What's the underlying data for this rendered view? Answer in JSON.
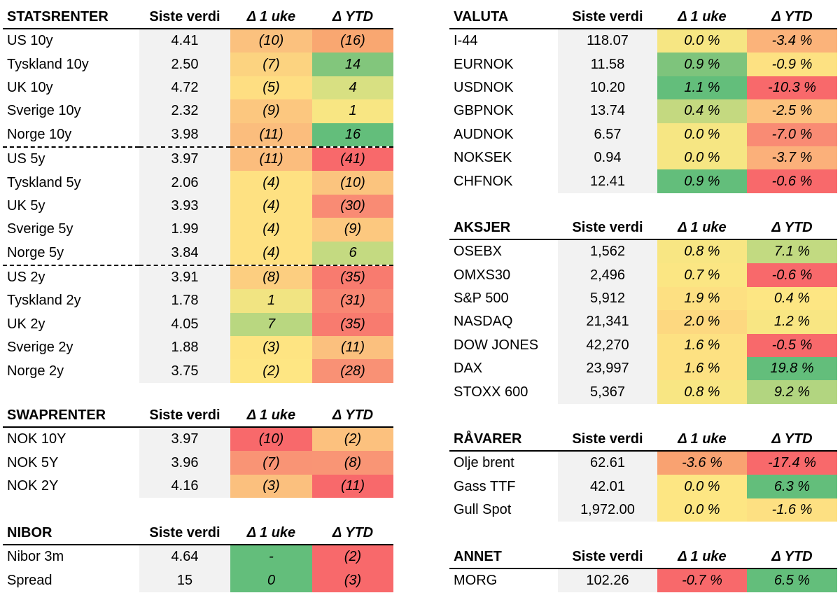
{
  "tables": {
    "statsrenter": {
      "headers": [
        "STATSRENTER",
        "Siste verdi",
        "Δ 1 uke",
        "Δ YTD"
      ],
      "rows": [
        {
          "name": "US 10y",
          "value": "4.41",
          "w": "(10)",
          "ytd": "(16)",
          "wc": "#fbc17e",
          "yc": "#f9a771"
        },
        {
          "name": "Tyskland 10y",
          "value": "2.50",
          "w": "(7)",
          "ytd": "14",
          "wc": "#fcd380",
          "yc": "#82c67c"
        },
        {
          "name": "UK 10y",
          "value": "4.72",
          "w": "(5)",
          "ytd": "4",
          "wc": "#fede82",
          "yc": "#d8e082"
        },
        {
          "name": "Sverige 10y",
          "value": "2.32",
          "w": "(9)",
          "ytd": "1",
          "wc": "#fcc77f",
          "yc": "#f8e683"
        },
        {
          "name": "Norge 10y",
          "value": "3.98",
          "w": "(11)",
          "ytd": "16",
          "wc": "#fbbd7d",
          "yc": "#63be7b",
          "sep": true
        },
        {
          "name": "US 5y",
          "value": "3.97",
          "w": "(11)",
          "ytd": "(41)",
          "wc": "#fbbd7d",
          "yc": "#f8696b"
        },
        {
          "name": "Tyskland 5y",
          "value": "2.06",
          "w": "(4)",
          "ytd": "(10)",
          "wc": "#fee182",
          "yc": "#fbc47e"
        },
        {
          "name": "UK 5y",
          "value": "3.93",
          "w": "(4)",
          "ytd": "(30)",
          "wc": "#fee182",
          "yc": "#f98b74"
        },
        {
          "name": "Sverige 5y",
          "value": "1.99",
          "w": "(4)",
          "ytd": "(9)",
          "wc": "#fee182",
          "yc": "#fcc87f"
        },
        {
          "name": "Norge 5y",
          "value": "3.84",
          "w": "(4)",
          "ytd": "6",
          "wc": "#fee182",
          "yc": "#c4da81",
          "sep": true
        },
        {
          "name": "US 2y",
          "value": "3.91",
          "w": "(8)",
          "ytd": "(35)",
          "wc": "#fcce80",
          "yc": "#f87b6f"
        },
        {
          "name": "Tyskland 2y",
          "value": "1.78",
          "w": "1",
          "ytd": "(31)",
          "wc": "#f1e482",
          "yc": "#f98773"
        },
        {
          "name": "UK 2y",
          "value": "4.05",
          "w": "7",
          "ytd": "(35)",
          "wc": "#b9d780",
          "yc": "#f87b6f"
        },
        {
          "name": "Sverige 2y",
          "value": "1.88",
          "w": "(3)",
          "ytd": "(11)",
          "wc": "#fee482",
          "yc": "#fbc07e"
        },
        {
          "name": "Norge 2y",
          "value": "3.75",
          "w": "(2)",
          "ytd": "(28)",
          "wc": "#fee683",
          "yc": "#f99175"
        }
      ]
    },
    "swaprenter": {
      "headers": [
        "SWAPRENTER",
        "Siste verdi",
        "Δ 1 uke",
        "Δ YTD"
      ],
      "rows": [
        {
          "name": "NOK 10Y",
          "value": "3.97",
          "w": "(10)",
          "ytd": "(2)",
          "wc": "#f8696b",
          "yc": "#fcc17e"
        },
        {
          "name": "NOK 5Y",
          "value": "3.96",
          "w": "(7)",
          "ytd": "(8)",
          "wc": "#f99475",
          "yc": "#f99575"
        },
        {
          "name": "NOK 2Y",
          "value": "4.16",
          "w": "(3)",
          "ytd": "(11)",
          "wc": "#fbc07e",
          "yc": "#f8696b"
        }
      ]
    },
    "nibor": {
      "headers": [
        "NIBOR",
        "Siste verdi",
        "Δ 1 uke",
        "Δ YTD"
      ],
      "rows": [
        {
          "name": "Nibor 3m",
          "value": "4.64",
          "w": "-",
          "ytd": "(2)",
          "wc": "#63be7b",
          "yc": "#f8696b"
        },
        {
          "name": "Spread",
          "value": "15",
          "w": "0",
          "ytd": "(3)",
          "wc": "#63be7b",
          "yc": "#f8696b"
        }
      ]
    },
    "valuta": {
      "headers": [
        "VALUTA",
        "Siste verdi",
        "Δ 1 uke",
        "Δ YTD"
      ],
      "rows": [
        {
          "name": "I-44",
          "value": "118.07",
          "w": "0.0 %",
          "ytd": "-3.4 %",
          "wc": "#f6e683",
          "yc": "#fbb37a"
        },
        {
          "name": "EURNOK",
          "value": "11.58",
          "w": "0.9 %",
          "ytd": "-0.9 %",
          "wc": "#7ec47c",
          "yc": "#fde182"
        },
        {
          "name": "USDNOK",
          "value": "10.20",
          "w": "1.1 %",
          "ytd": "-10.3 %",
          "wc": "#63be7b",
          "yc": "#f8696b"
        },
        {
          "name": "GBPNOK",
          "value": "13.74",
          "w": "0.4 %",
          "ytd": "-2.5 %",
          "wc": "#c4d980",
          "yc": "#fcc27e"
        },
        {
          "name": "AUDNOK",
          "value": "6.57",
          "w": "0.0 %",
          "ytd": "-7.0 %",
          "wc": "#f6e683",
          "yc": "#f98b74"
        },
        {
          "name": "NOKSEK",
          "value": "0.94",
          "w": "0.0 %",
          "ytd": "-3.7 %",
          "wc": "#f6e683",
          "yc": "#fbb07a"
        },
        {
          "name": "CHFNOK",
          "value": "12.41",
          "w": "0.9 %",
          "ytd": "-0.6 %",
          "wc": "#63be7b",
          "yc": "#f8696b"
        }
      ]
    },
    "aksjer": {
      "headers": [
        "AKSJER",
        "Siste verdi",
        "Δ 1 uke",
        "Δ YTD"
      ],
      "rows": [
        {
          "name": "OSEBX",
          "value": "1,562",
          "w": "0.8 %",
          "ytd": "7.1 %",
          "wc": "#f8e683",
          "yc": "#c2da81"
        },
        {
          "name": "OMXS30",
          "value": "2,496",
          "w": "0.7 %",
          "ytd": "-0.6 %",
          "wc": "#fbe683",
          "yc": "#f8696b"
        },
        {
          "name": "S&P 500",
          "value": "5,912",
          "w": "1.9 %",
          "ytd": "0.4 %",
          "wc": "#fde082",
          "yc": "#fde683"
        },
        {
          "name": "NASDAQ",
          "value": "21,341",
          "w": "2.0 %",
          "ytd": "1.2 %",
          "wc": "#fdd880",
          "yc": "#f8e683"
        },
        {
          "name": "DOW JONES",
          "value": "42,270",
          "w": "1.6 %",
          "ytd": "-0.5 %",
          "wc": "#fde182",
          "yc": "#f8696b"
        },
        {
          "name": "DAX",
          "value": "23,997",
          "w": "1.6 %",
          "ytd": "19.8 %",
          "wc": "#fde182",
          "yc": "#63be7b"
        },
        {
          "name": "STOXX 600",
          "value": "5,367",
          "w": "0.8 %",
          "ytd": "9.2 %",
          "wc": "#f8e683",
          "yc": "#b2d580"
        }
      ]
    },
    "ravarer": {
      "headers": [
        "RÅVARER",
        "Siste verdi",
        "Δ 1 uke",
        "Δ YTD"
      ],
      "rows": [
        {
          "name": "Olje brent",
          "value": "62.61",
          "w": "-3.6 %",
          "ytd": "-17.4 %",
          "wc": "#f9a271",
          "yc": "#f8696b"
        },
        {
          "name": "Gass TTF",
          "value": "42.01",
          "w": "0.0 %",
          "ytd": "6.3 %",
          "wc": "#fde683",
          "yc": "#63be7b"
        },
        {
          "name": "Gull Spot",
          "value": "1,972.00",
          "w": "0.0 %",
          "ytd": "-1.6 %",
          "wc": "#fde683",
          "yc": "#fde082"
        }
      ]
    },
    "annet": {
      "headers": [
        "ANNET",
        "Siste verdi",
        "Δ 1 uke",
        "Δ YTD"
      ],
      "rows": [
        {
          "name": "MORG",
          "value": "102.26",
          "w": "-0.7 %",
          "ytd": "6.5 %",
          "wc": "#f8696b",
          "yc": "#63be7b"
        }
      ]
    }
  }
}
